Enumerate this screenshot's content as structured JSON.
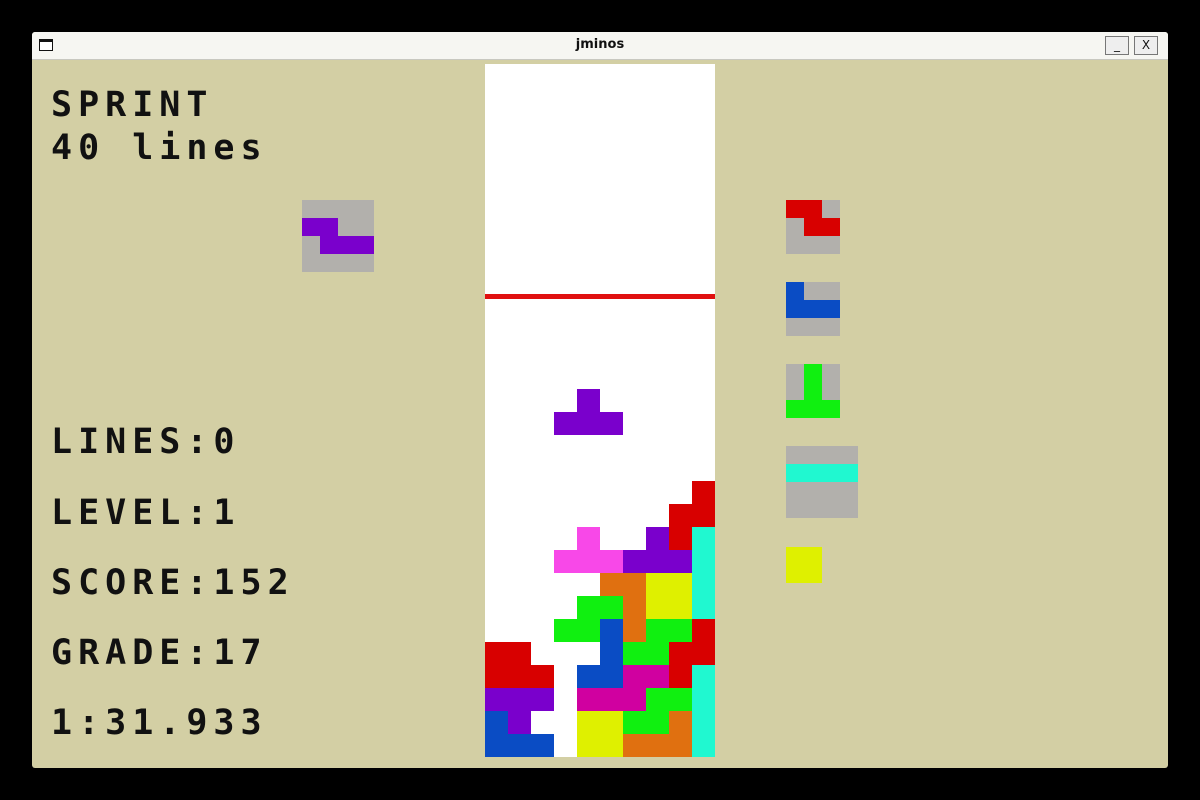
{
  "window": {
    "title": "jminos",
    "minimize_label": "_",
    "close_label": "X"
  },
  "mode": {
    "name": "SPRINT",
    "goal": "40 lines"
  },
  "stats": {
    "lines": "LINES:0",
    "level": "LEVEL:1",
    "score": "SCORE:152",
    "grade": "GRADE:17",
    "time": "1:31.933"
  },
  "colors": {
    "R": "#d80000",
    "B": "#0a4cc4",
    "P": "#7a00cc",
    "G": "#10f010",
    "C": "#20f8d0",
    "Y": "#dff000",
    "O": "#e07010",
    "M": "#d000a0",
    "K": "#f848e8",
    "bg": "#d3cfa4",
    "box": "#b2b0ac",
    "line": "#e01010"
  },
  "board": {
    "columns": 10,
    "visible_rows": 30,
    "danger_line_row": 20,
    "stack_rows_bottom_up": [
      "BBB.YYOOOC",
      "BP..YYGGOC",
      "PPP.MMMGGC",
      "RRR.BBMMRC",
      "RR...BGGRR",
      "...GGBOGGR",
      "....GGOYYC",
      ".....OOYYC",
      "...KKKPPPC",
      "....K..PRC",
      "........RR",
      ".........R"
    ],
    "active_piece": {
      "color": "P",
      "cells": [
        [
          15,
          4
        ],
        [
          14,
          3
        ],
        [
          14,
          4
        ],
        [
          14,
          5
        ]
      ]
    }
  },
  "hold": {
    "size": 4,
    "color": "P",
    "cells": [
      [
        1,
        0
      ],
      [
        1,
        1
      ],
      [
        2,
        1
      ],
      [
        2,
        2
      ],
      [
        2,
        3
      ]
    ]
  },
  "next_queue": [
    {
      "size": 3,
      "color": "R",
      "cells": [
        [
          0,
          0
        ],
        [
          0,
          1
        ],
        [
          1,
          1
        ],
        [
          1,
          2
        ]
      ]
    },
    {
      "size": 3,
      "color": "B",
      "cells": [
        [
          0,
          0
        ],
        [
          1,
          0
        ],
        [
          1,
          1
        ],
        [
          1,
          2
        ]
      ]
    },
    {
      "size": 3,
      "color": "G",
      "cells": [
        [
          0,
          1
        ],
        [
          1,
          1
        ],
        [
          2,
          0
        ],
        [
          2,
          1
        ],
        [
          2,
          2
        ]
      ]
    },
    {
      "size": 4,
      "color": "C",
      "cells": [
        [
          1,
          0
        ],
        [
          1,
          1
        ],
        [
          1,
          2
        ],
        [
          1,
          3
        ]
      ]
    },
    {
      "size": 2,
      "color": "Y",
      "cells": [
        [
          0,
          0
        ],
        [
          0,
          1
        ],
        [
          1,
          0
        ],
        [
          1,
          1
        ]
      ],
      "no_box": true
    }
  ]
}
